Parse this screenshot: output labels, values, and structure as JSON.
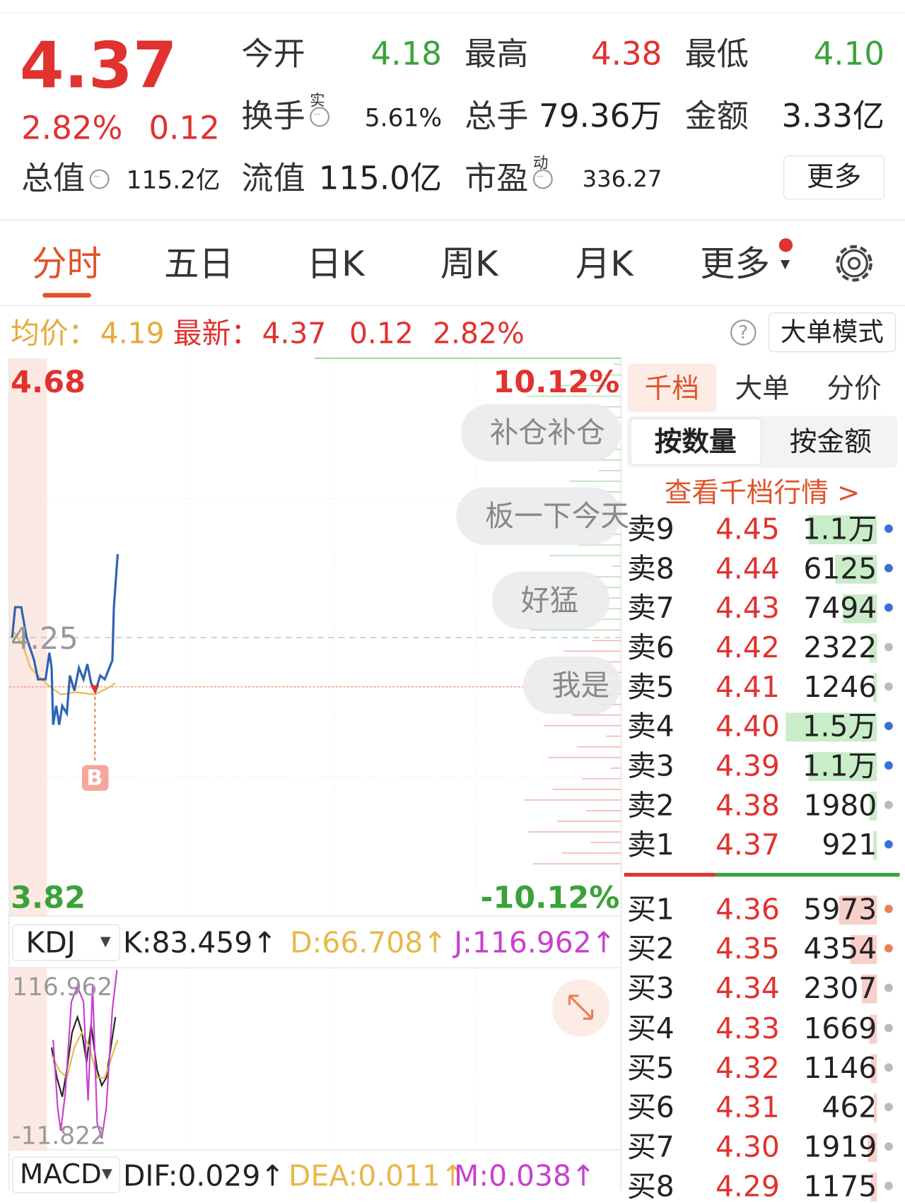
{
  "header": {
    "price": "4.37",
    "change_pct": "2.82%",
    "change": "0.12",
    "stats": [
      {
        "label": "今开",
        "value": "4.18"
      },
      {
        "label": "最高",
        "value": "4.38"
      },
      {
        "label": "最低",
        "value": "4.10"
      },
      {
        "label": "换手",
        "sup": "实",
        "value": "5.61%"
      },
      {
        "label": "总手",
        "value": "79.36万"
      },
      {
        "label": "金额",
        "value": "3.33亿"
      },
      {
        "label": "总值",
        "value": "115.2亿"
      },
      {
        "label": "流值",
        "value": "115.0亿"
      },
      {
        "label": "市盈",
        "sup": "动",
        "value": "336.27"
      }
    ],
    "more": "更多"
  },
  "tabs": [
    "分时",
    "五日",
    "日K",
    "周K",
    "月K",
    "更多"
  ],
  "info_bar": {
    "avg_label": "均价：",
    "avg": "4.19",
    "latest_label": "最新：",
    "latest": "4.37",
    "change": "0.12",
    "change_pct": "2.82%",
    "mode": "大单模式"
  },
  "chart": {
    "y_top": "4.68",
    "y_mid": "4.25",
    "y_bottom": "3.82",
    "pct_top": "10.12%",
    "pct_bottom": "-10.12%",
    "marker": "B",
    "comments": [
      "补仓补仓",
      "板一下今天",
      "好猛",
      "我是"
    ]
  },
  "kdj": {
    "name": "KDJ",
    "k": "K:83.459↑",
    "d": "D:66.708↑",
    "j": "J:116.962↑",
    "axis_top": "116.962",
    "axis_bottom": "-11.822"
  },
  "macd": {
    "name": "MACD",
    "dif": "DIF:0.029↑",
    "dea": "DEA:0.011↑",
    "m": "M:0.038↑"
  },
  "order_book": {
    "tabs": [
      "千档",
      "大单",
      "分价"
    ],
    "subtabs": [
      "按数量",
      "按金额"
    ],
    "link": "查看千档行情 >",
    "asks": [
      {
        "name": "卖9",
        "price": "4.45",
        "volume": "1.1万"
      },
      {
        "name": "卖8",
        "price": "4.44",
        "volume": "6125"
      },
      {
        "name": "卖7",
        "price": "4.43",
        "volume": "7494"
      },
      {
        "name": "卖6",
        "price": "4.42",
        "volume": "2322"
      },
      {
        "name": "卖5",
        "price": "4.41",
        "volume": "1246"
      },
      {
        "name": "卖4",
        "price": "4.40",
        "volume": "1.5万"
      },
      {
        "name": "卖3",
        "price": "4.39",
        "volume": "1.1万"
      },
      {
        "name": "卖2",
        "price": "4.38",
        "volume": "1980"
      },
      {
        "name": "卖1",
        "price": "4.37",
        "volume": "921"
      }
    ],
    "bids": [
      {
        "name": "买1",
        "price": "4.36",
        "volume": "5973"
      },
      {
        "name": "买2",
        "price": "4.35",
        "volume": "4354"
      },
      {
        "name": "买3",
        "price": "4.34",
        "volume": "2307"
      },
      {
        "name": "买4",
        "price": "4.33",
        "volume": "1669"
      },
      {
        "name": "买5",
        "price": "4.32",
        "volume": "1146"
      },
      {
        "name": "买6",
        "price": "4.31",
        "volume": "462"
      },
      {
        "name": "买7",
        "price": "4.30",
        "volume": "1919"
      },
      {
        "name": "买8",
        "price": "4.29",
        "volume": "1175"
      }
    ]
  }
}
